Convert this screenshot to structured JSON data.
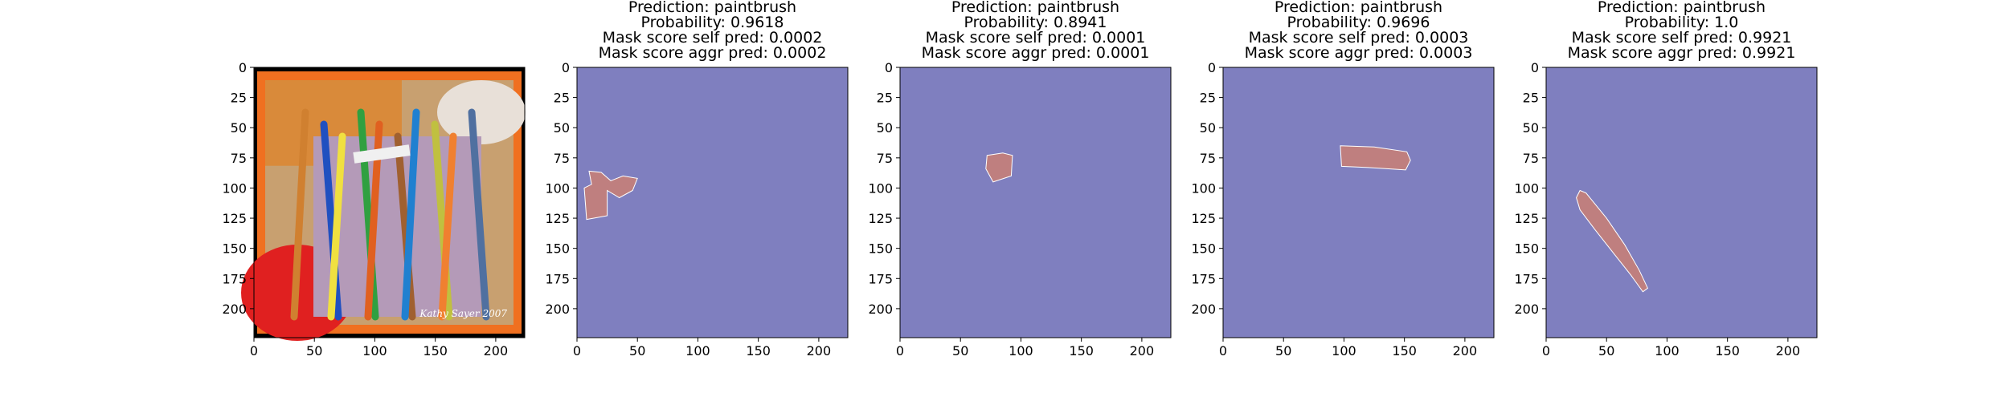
{
  "colors": {
    "background": "#7f7fbf",
    "mask": "#bf7f7f",
    "photo_frame": "#f07020",
    "photo_border": "#000000"
  },
  "chart_data": [
    {
      "type": "image",
      "image_content": "photo of paintbrushes in a bucket",
      "watermark": "Kathy Sayer 2007",
      "xlim": [
        0,
        224
      ],
      "ylim": [
        224,
        0
      ],
      "xticks": [
        0,
        50,
        100,
        150,
        200
      ],
      "yticks": [
        0,
        25,
        50,
        75,
        100,
        125,
        150,
        175,
        200
      ],
      "title_lines": []
    },
    {
      "type": "heatmap",
      "title_lines": [
        "Prediction: paintbrush",
        "Probability: 0.9618",
        "Mask score self pred: 0.0002",
        "Mask score aggr pred: 0.0002"
      ],
      "prediction": "paintbrush",
      "probability": 0.9618,
      "mask_score_self_pred": 0.0002,
      "mask_score_aggr_pred": 0.0002,
      "xlim": [
        0,
        224
      ],
      "ylim": [
        224,
        0
      ],
      "xticks": [
        0,
        50,
        100,
        150,
        200
      ],
      "yticks": [
        0,
        25,
        50,
        75,
        100,
        125,
        150,
        175,
        200
      ],
      "mask_region": [
        [
          10,
          86
        ],
        [
          20,
          87
        ],
        [
          28,
          94
        ],
        [
          38,
          90
        ],
        [
          50,
          92
        ],
        [
          46,
          102
        ],
        [
          35,
          108
        ],
        [
          25,
          102
        ],
        [
          25,
          123
        ],
        [
          8,
          126
        ],
        [
          6,
          100
        ],
        [
          12,
          97
        ]
      ]
    },
    {
      "type": "heatmap",
      "title_lines": [
        "Prediction: paintbrush",
        "Probability: 0.8941",
        "Mask score self pred: 0.0001",
        "Mask score aggr pred: 0.0001"
      ],
      "prediction": "paintbrush",
      "probability": 0.8941,
      "mask_score_self_pred": 0.0001,
      "mask_score_aggr_pred": 0.0001,
      "xlim": [
        0,
        224
      ],
      "ylim": [
        224,
        0
      ],
      "xticks": [
        0,
        50,
        100,
        150,
        200
      ],
      "yticks": [
        0,
        25,
        50,
        75,
        100,
        125,
        150,
        175,
        200
      ],
      "mask_region": [
        [
          72,
          73
        ],
        [
          85,
          71
        ],
        [
          93,
          73
        ],
        [
          92,
          90
        ],
        [
          77,
          95
        ],
        [
          71,
          84
        ]
      ]
    },
    {
      "type": "heatmap",
      "title_lines": [
        "Prediction: paintbrush",
        "Probability: 0.9696",
        "Mask score self pred: 0.0003",
        "Mask score aggr pred: 0.0003"
      ],
      "prediction": "paintbrush",
      "probability": 0.9696,
      "mask_score_self_pred": 0.0003,
      "mask_score_aggr_pred": 0.0003,
      "xlim": [
        0,
        224
      ],
      "ylim": [
        224,
        0
      ],
      "xticks": [
        0,
        50,
        100,
        150,
        200
      ],
      "yticks": [
        0,
        25,
        50,
        75,
        100,
        125,
        150,
        175,
        200
      ],
      "mask_region": [
        [
          97,
          65
        ],
        [
          125,
          66
        ],
        [
          152,
          70
        ],
        [
          155,
          77
        ],
        [
          151,
          85
        ],
        [
          120,
          83
        ],
        [
          98,
          82
        ]
      ]
    },
    {
      "type": "heatmap",
      "title_lines": [
        "Prediction: paintbrush",
        "Probability: 1.0",
        "Mask score self pred: 0.9921",
        "Mask score aggr pred: 0.9921"
      ],
      "prediction": "paintbrush",
      "probability": 1.0,
      "mask_score_self_pred": 0.9921,
      "mask_score_aggr_pred": 0.9921,
      "xlim": [
        0,
        224
      ],
      "ylim": [
        224,
        0
      ],
      "xticks": [
        0,
        50,
        100,
        150,
        200
      ],
      "yticks": [
        0,
        25,
        50,
        75,
        100,
        125,
        150,
        175,
        200
      ],
      "mask_region": [
        [
          28,
          102
        ],
        [
          33,
          104
        ],
        [
          50,
          125
        ],
        [
          65,
          147
        ],
        [
          77,
          168
        ],
        [
          84,
          183
        ],
        [
          80,
          186
        ],
        [
          70,
          172
        ],
        [
          55,
          153
        ],
        [
          40,
          134
        ],
        [
          28,
          118
        ],
        [
          25,
          108
        ]
      ]
    }
  ]
}
